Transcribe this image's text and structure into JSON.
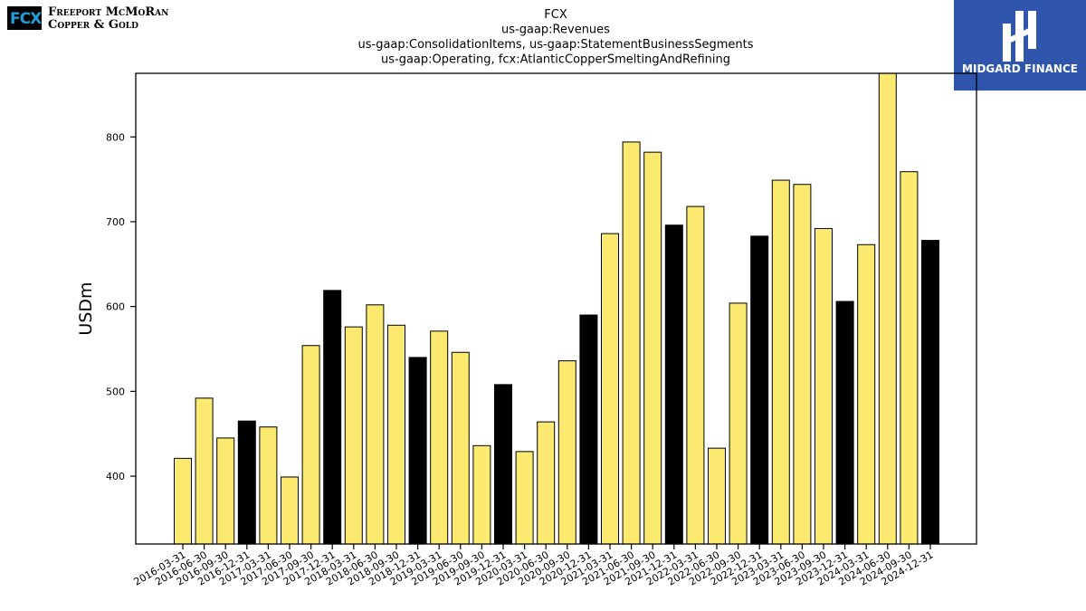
{
  "logos": {
    "fcx": {
      "mark": "FCX",
      "line1": "Freeport McMoRan",
      "line2": "Copper & Gold"
    },
    "midgard": {
      "name": "MIDGARD FINANCE",
      "color": "#2f55ad"
    }
  },
  "chart_data": {
    "type": "bar",
    "title": [
      "FCX",
      "us-gaap:Revenues",
      "us-gaap:ConsolidationItems, us-gaap:StatementBusinessSegments",
      "us-gaap:Operating, fcx:AtlanticCopperSmeltingAndRefining"
    ],
    "xlabel": "",
    "ylabel": "USDm",
    "ylim": [
      320,
      875
    ],
    "yticks": [
      400,
      500,
      600,
      700,
      800
    ],
    "grid": false,
    "colors": {
      "quarter": "#fce96f",
      "year_end": "#000000",
      "edge": "#000000"
    },
    "categories": [
      "2016-03-31",
      "2016-06-30",
      "2016-09-30",
      "2016-12-31",
      "2017-03-31",
      "2017-06-30",
      "2017-09-30",
      "2017-12-31",
      "2018-03-31",
      "2018-06-30",
      "2018-09-30",
      "2018-12-31",
      "2019-03-31",
      "2019-06-30",
      "2019-09-30",
      "2019-12-31",
      "2020-03-31",
      "2020-06-30",
      "2020-09-30",
      "2020-12-31",
      "2021-03-31",
      "2021-06-30",
      "2021-09-30",
      "2021-12-31",
      "2022-03-31",
      "2022-06-30",
      "2022-09-30",
      "2022-12-31",
      "2023-03-31",
      "2023-06-30",
      "2023-09-30",
      "2023-12-31",
      "2024-03-31",
      "2024-06-30",
      "2024-09-30",
      "2024-12-31"
    ],
    "values": [
      421,
      492,
      445,
      465,
      458,
      399,
      554,
      619,
      576,
      602,
      578,
      540,
      571,
      546,
      436,
      508,
      429,
      464,
      536,
      590,
      686,
      794,
      782,
      696,
      718,
      433,
      604,
      683,
      749,
      744,
      692,
      606,
      673,
      880,
      759,
      678
    ]
  }
}
